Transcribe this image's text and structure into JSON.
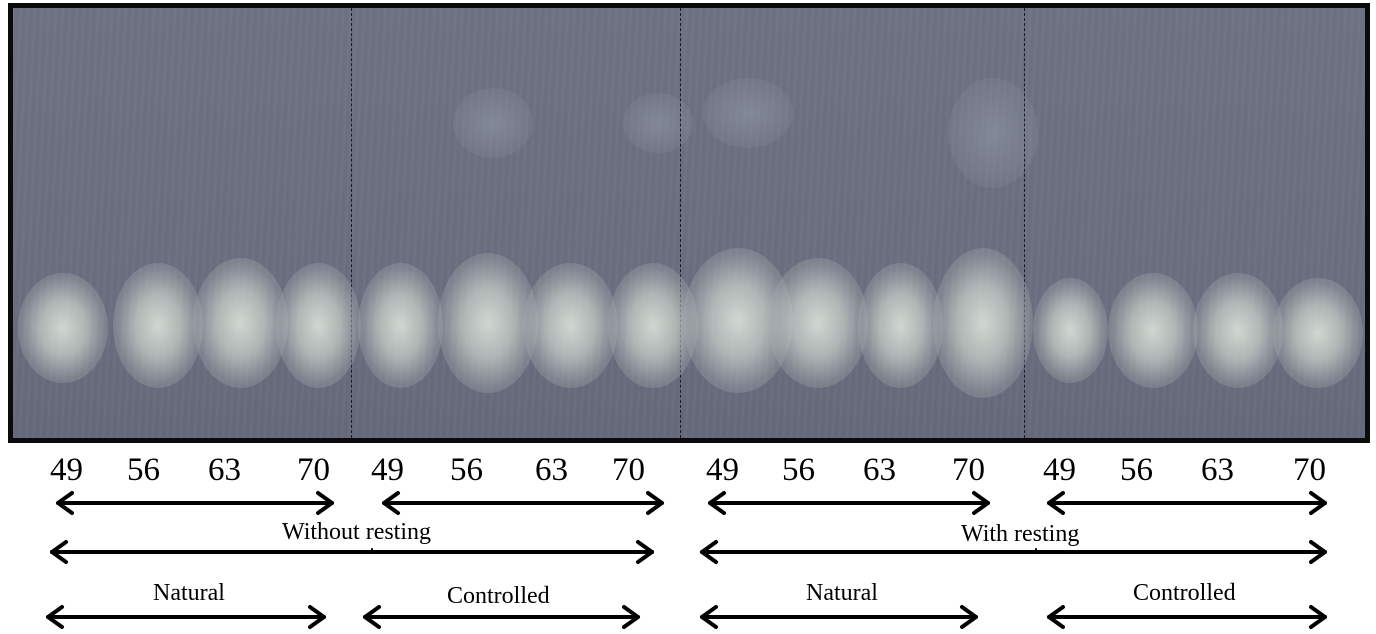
{
  "lane_labels": [
    "49",
    "56",
    "63",
    "70",
    "49",
    "56",
    "63",
    "70",
    "49",
    "56",
    "63",
    "70",
    "49",
    "56",
    "63",
    "70"
  ],
  "group_labels": {
    "without_resting": "Without resting",
    "with_resting": "With resting",
    "natural_1": "Natural",
    "controlled_1": "Controlled",
    "natural_2": "Natural",
    "controlled_2": "Controlled"
  },
  "colors": {
    "gel_background": "#6b6f80",
    "spot": "#d6dcd4",
    "frame": "#0b0b0b"
  }
}
